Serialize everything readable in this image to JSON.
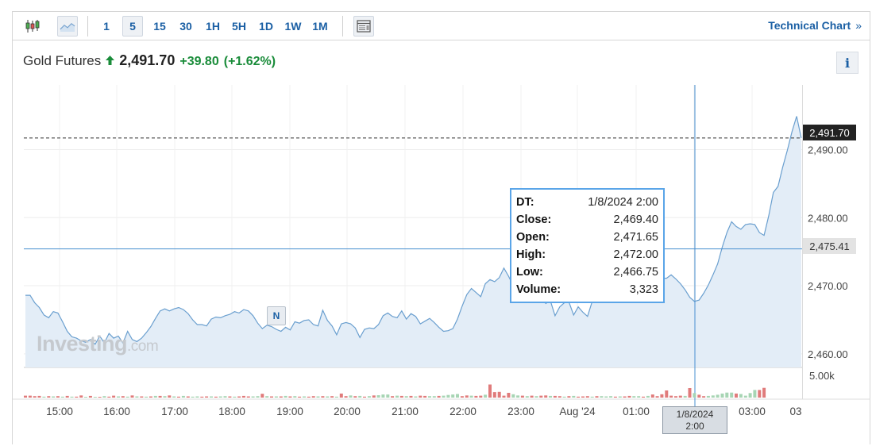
{
  "toolbar": {
    "intervals": [
      "1",
      "5",
      "15",
      "30",
      "1H",
      "5H",
      "1D",
      "1W",
      "1M"
    ],
    "active_interval": "5",
    "technical_chart_label": "Technical Chart",
    "technical_chart_chevron": "»",
    "icons": [
      "candlestick-icon",
      "area-chart-icon",
      "layout-icon"
    ]
  },
  "quote": {
    "name": "Gold Futures",
    "direction": "up",
    "price": "2,491.70",
    "change": "+39.80",
    "change_pct": "(+1.62%)",
    "up_color": "#1a8c3a"
  },
  "info_button": "i",
  "watermark": {
    "brand": "Investing",
    "suffix": ".com"
  },
  "news_marker": "N",
  "tooltip": {
    "rows": [
      {
        "key": "DT:",
        "value": "1/8/2024 2:00"
      },
      {
        "key": "Close:",
        "value": "2,469.40"
      },
      {
        "key": "Open:",
        "value": "2,471.65"
      },
      {
        "key": "High:",
        "value": "2,472.00"
      },
      {
        "key": "Low:",
        "value": "2,466.75"
      },
      {
        "key": "Volume:",
        "value": "3,323"
      }
    ]
  },
  "last_price_tag": "2,491.70",
  "crosshair_price_tag": "2,475.41",
  "crosshair_date_tag": [
    "1/8/2024",
    "2:00"
  ],
  "chart_data": {
    "type": "area",
    "line_color": "#6a9fcf",
    "fill_color": "#e3edf7",
    "up_volume_color": "#a7d5b4",
    "down_volume_color": "#e07b7b",
    "grid": true,
    "y_ticks": [
      "2,460.00",
      "2,470.00",
      "2,480.00",
      "2,490.00"
    ],
    "y_tick_values": [
      2460,
      2470,
      2480,
      2490
    ],
    "ylim": [
      2458,
      2499.5
    ],
    "x_ticks": [
      "15:00",
      "16:00",
      "17:00",
      "18:00",
      "19:00",
      "20:00",
      "21:00",
      "22:00",
      "23:00",
      "Aug '24",
      "01:00",
      "02:00",
      "03:00",
      "03"
    ],
    "volume_tick": "5.00k",
    "volume_max": 5000,
    "last_price": 2491.7,
    "crosshair_price": 2475.41,
    "series": [
      {
        "values": [
          2468.6,
          2468.6,
          2467.5,
          2466.8,
          2465.7,
          2465.3,
          2466.2,
          2466.0,
          2464.7,
          2463.3,
          2462.5,
          2462.3,
          2461.9,
          2461.7,
          2462.1,
          2461.4,
          2462.6,
          2461.6,
          2463.0,
          2462.3,
          2462.6,
          2461.6,
          2463.3,
          2462.1,
          2461.8,
          2462.3,
          2463.1,
          2464.0,
          2465.2,
          2466.3,
          2466.6,
          2466.3,
          2466.6,
          2466.8,
          2466.5,
          2465.9,
          2465.0,
          2464.3,
          2464.3,
          2464.1,
          2465.1,
          2465.4,
          2465.3,
          2465.6,
          2465.8,
          2466.2,
          2466.0,
          2466.5,
          2466.3,
          2465.6,
          2464.5,
          2463.7,
          2464.2,
          2464.0,
          2463.6,
          2463.3,
          2463.9,
          2463.5,
          2464.7,
          2464.5,
          2464.9,
          2465.0,
          2464.3,
          2464.1,
          2466.4,
          2464.9,
          2464.1,
          2462.8,
          2464.4,
          2464.6,
          2464.4,
          2463.8,
          2462.4,
          2463.6,
          2463.8,
          2463.7,
          2464.3,
          2465.6,
          2466.0,
          2465.5,
          2465.3,
          2466.3,
          2465.1,
          2465.9,
          2465.5,
          2464.4,
          2464.8,
          2465.2,
          2464.6,
          2463.9,
          2463.3,
          2463.4,
          2463.7,
          2465.1,
          2467.0,
          2468.7,
          2469.6,
          2469.0,
          2468.4,
          2470.3,
          2470.9,
          2470.6,
          2471.2,
          2472.6,
          2471.4,
          2470.0,
          2467.9,
          2468.3,
          2468.2,
          2468.7,
          2469.0,
          2468.4,
          2467.4,
          2467.8,
          2465.6,
          2466.9,
          2467.5,
          2467.6,
          2465.7,
          2466.9,
          2466.1,
          2465.5,
          2467.7,
          2468.5,
          2468.8,
          2469.6,
          2470.3,
          2469.8,
          2470.5,
          2471.0,
          2470.4,
          2470.7,
          2471.1,
          2471.0,
          2470.8,
          2471.6,
          2471.2,
          2471.1,
          2471.1,
          2471.6,
          2471.0,
          2470.3,
          2469.4,
          2468.3,
          2467.7,
          2467.9,
          2468.9,
          2470.1,
          2471.6,
          2473.2,
          2475.7,
          2477.8,
          2479.4,
          2478.7,
          2478.3,
          2479.0,
          2479.1,
          2479.0,
          2477.8,
          2477.4,
          2480.3,
          2483.7,
          2484.6,
          2487.4,
          2489.9,
          2492.6,
          2494.9,
          2491.7
        ]
      }
    ],
    "volume": {
      "values": [
        400,
        400,
        300,
        350,
        200,
        300,
        250,
        300,
        200,
        350,
        200,
        200,
        450,
        150,
        350,
        150,
        150,
        300,
        200,
        400,
        250,
        300,
        200,
        450,
        250,
        250,
        200,
        250,
        350,
        350,
        300,
        450,
        250,
        200,
        350,
        250,
        200,
        250,
        200,
        250,
        250,
        200,
        250,
        300,
        250,
        200,
        250,
        350,
        250,
        250,
        300,
        800,
        300,
        250,
        250,
        250,
        350,
        250,
        300,
        200,
        250,
        200,
        300,
        250,
        300,
        250,
        300,
        200,
        850,
        300,
        450,
        300,
        350,
        200,
        300,
        450,
        500,
        650,
        650,
        300,
        400,
        350,
        300,
        350,
        250,
        400,
        350,
        300,
        300,
        350,
        400,
        550,
        650,
        750,
        300,
        450,
        400,
        350,
        400,
        600,
        2750,
        1150,
        1200,
        400,
        1000,
        700,
        450,
        400,
        300,
        400,
        300,
        400,
        450,
        350,
        350,
        300,
        200,
        300,
        350,
        200,
        250,
        300,
        200,
        300,
        300,
        250,
        300,
        200,
        250,
        250,
        350,
        300,
        300,
        200,
        350,
        650,
        300,
        700,
        1500,
        400,
        300,
        400,
        350,
        2000,
        950,
        600,
        300,
        350,
        450,
        600,
        850,
        1050,
        1050,
        850,
        750,
        400,
        950,
        1600,
        1600,
        2050
      ],
      "up": [
        false,
        false,
        false,
        false,
        true,
        false,
        true,
        false,
        true,
        false,
        true,
        false,
        false,
        true,
        false,
        true,
        false,
        true,
        false,
        false,
        true,
        false,
        true,
        false,
        true,
        false,
        true,
        false,
        true,
        false,
        true,
        false,
        true,
        false,
        true,
        false,
        true,
        true,
        false,
        false,
        true,
        false,
        true,
        true,
        false,
        true,
        false,
        false,
        false,
        true,
        true,
        false,
        true,
        false,
        true,
        false,
        true,
        false,
        true,
        false,
        true,
        false,
        false,
        true,
        false,
        true,
        false,
        true,
        false,
        false,
        true,
        false,
        true,
        false,
        true,
        false,
        true,
        true,
        true,
        false,
        true,
        false,
        true,
        false,
        true,
        false,
        false,
        true,
        true,
        false,
        true,
        true,
        true,
        true,
        false,
        false,
        true,
        false,
        false,
        true,
        false,
        false,
        false,
        false,
        false,
        true,
        true,
        false,
        true,
        false,
        true,
        false,
        false,
        true,
        false,
        false,
        true,
        false,
        true,
        false,
        false,
        false,
        true,
        false,
        true,
        true,
        true,
        false,
        true,
        false,
        false,
        true,
        true,
        false,
        true,
        false,
        false,
        false,
        false,
        false,
        false,
        false,
        true,
        false,
        true,
        false,
        false,
        true,
        true,
        true,
        true,
        true,
        true,
        false,
        true,
        true,
        true,
        true
      ]
    }
  }
}
